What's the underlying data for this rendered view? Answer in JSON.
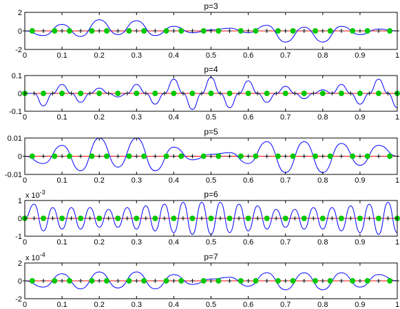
{
  "colors": {
    "curve": "#0000ff",
    "zero_line": "#ff0000",
    "points": "#00c800",
    "markers": "#000000",
    "axes": "#000000"
  },
  "chart_data": [
    {
      "type": "line",
      "title": "p=3",
      "xlim": [
        0,
        1
      ],
      "ylim": [
        -2,
        2
      ],
      "x_ticks": [
        "0",
        "0.1",
        "0.2",
        "0.3",
        "0.4",
        "0.5",
        "0.6",
        "0.7",
        "0.8",
        "0.9",
        "1"
      ],
      "y_ticks": [
        "2",
        "0",
        "-2"
      ],
      "y_tick_values": [
        2,
        0,
        -2
      ],
      "exponent_label": "",
      "series": [
        {
          "values_x": [
            0,
            0.05,
            0.1,
            0.15,
            0.2,
            0.25,
            0.3,
            0.35,
            0.4,
            0.45,
            0.5,
            0.55,
            0.6,
            0.65,
            0.7,
            0.75,
            0.8,
            0.85,
            0.9,
            0.95,
            1
          ],
          "values_y": [
            0,
            -0.5,
            0.7,
            -0.6,
            1.2,
            -0.4,
            1.1,
            -0.5,
            0.5,
            -0.2,
            0.1,
            0.3,
            -0.2,
            0.6,
            -1.2,
            0.4,
            -1.2,
            0.5,
            -0.4,
            0.2,
            0
          ]
        }
      ],
      "points_x": [
        0.02,
        0.08,
        0.12,
        0.18,
        0.22,
        0.28,
        0.32,
        0.38,
        0.42,
        0.48,
        0.52,
        0.58,
        0.62,
        0.68,
        0.72,
        0.78,
        0.82,
        0.88,
        0.92,
        0.98
      ],
      "markers_x": [
        0,
        0.05,
        0.1,
        0.15,
        0.2,
        0.25,
        0.3,
        0.35,
        0.4,
        0.45,
        0.5,
        0.55,
        0.6,
        0.65,
        0.7,
        0.75,
        0.8,
        0.85,
        0.9,
        0.95,
        1
      ]
    },
    {
      "type": "line",
      "title": "p=4",
      "xlim": [
        0,
        1
      ],
      "ylim": [
        -0.1,
        0.1
      ],
      "x_ticks": [
        "0",
        "0.1",
        "0.2",
        "0.3",
        "0.4",
        "0.5",
        "0.6",
        "0.7",
        "0.8",
        "0.9",
        "1"
      ],
      "y_ticks": [
        "0.1",
        "0",
        "-0.1"
      ],
      "y_tick_values": [
        0.1,
        0,
        -0.1
      ],
      "exponent_label": "",
      "series": [
        {
          "values_x": [
            0,
            0.025,
            0.05,
            0.075,
            0.1,
            0.125,
            0.15,
            0.175,
            0.2,
            0.225,
            0.25,
            0.275,
            0.3,
            0.325,
            0.35,
            0.375,
            0.4,
            0.425,
            0.45,
            0.475,
            0.5,
            0.525,
            0.55,
            0.575,
            0.6,
            0.625,
            0.65,
            0.675,
            0.7,
            0.725,
            0.75,
            0.775,
            0.8,
            0.825,
            0.85,
            0.875,
            0.9,
            0.925,
            0.95,
            0.975,
            1
          ],
          "values_y": [
            0,
            0,
            -0.07,
            0,
            0.05,
            0,
            -0.05,
            0,
            0.03,
            0,
            -0.02,
            0,
            0.05,
            0,
            -0.06,
            0,
            0.08,
            0,
            -0.09,
            0,
            0.09,
            0,
            -0.08,
            0,
            0.07,
            0,
            -0.05,
            0,
            0.04,
            0,
            -0.03,
            0,
            0.02,
            0,
            0.05,
            0,
            -0.06,
            0,
            0.08,
            0,
            -0.08
          ]
        }
      ],
      "points_x": [
        0,
        0.05,
        0.1,
        0.15,
        0.2,
        0.25,
        0.3,
        0.35,
        0.4,
        0.45,
        0.5,
        0.55,
        0.6,
        0.65,
        0.7,
        0.75,
        0.8,
        0.85,
        0.9,
        0.95,
        1
      ],
      "markers_x": [
        0.025,
        0.075,
        0.125,
        0.175,
        0.225,
        0.275,
        0.325,
        0.375,
        0.425,
        0.475,
        0.525,
        0.575,
        0.625,
        0.675,
        0.725,
        0.775,
        0.825,
        0.875,
        0.925,
        0.975
      ]
    },
    {
      "type": "line",
      "title": "p=5",
      "xlim": [
        0,
        1
      ],
      "ylim": [
        -0.01,
        0.01
      ],
      "x_ticks": [
        "0",
        "0.1",
        "0.2",
        "0.3",
        "0.4",
        "0.5",
        "0.6",
        "0.7",
        "0.8",
        "0.9",
        "1"
      ],
      "y_ticks": [
        "0.01",
        "0",
        "-0.01"
      ],
      "y_tick_values": [
        0.01,
        0,
        -0.01
      ],
      "exponent_label": "",
      "series": [
        {
          "values_x": [
            0,
            0.05,
            0.1,
            0.15,
            0.2,
            0.25,
            0.3,
            0.35,
            0.4,
            0.45,
            0.5,
            0.55,
            0.6,
            0.65,
            0.7,
            0.75,
            0.8,
            0.85,
            0.9,
            0.95,
            1
          ],
          "values_y": [
            0,
            -0.004,
            0.006,
            -0.008,
            0.01,
            -0.006,
            0.01,
            -0.008,
            0.005,
            -0.002,
            0.001,
            0.002,
            -0.004,
            0.008,
            -0.009,
            0.008,
            -0.009,
            0.007,
            -0.005,
            0.006,
            0
          ]
        }
      ],
      "points_x": [
        0.02,
        0.08,
        0.12,
        0.18,
        0.22,
        0.28,
        0.32,
        0.38,
        0.42,
        0.48,
        0.52,
        0.58,
        0.62,
        0.68,
        0.72,
        0.78,
        0.82,
        0.88,
        0.92,
        0.98
      ],
      "markers_x": [
        0,
        0.05,
        0.1,
        0.15,
        0.2,
        0.25,
        0.3,
        0.35,
        0.4,
        0.45,
        0.5,
        0.55,
        0.6,
        0.65,
        0.7,
        0.75,
        0.8,
        0.85,
        0.9,
        0.95,
        1
      ]
    },
    {
      "type": "line",
      "title": "p=6",
      "xlim": [
        0,
        1
      ],
      "ylim": [
        -1,
        1
      ],
      "x_ticks": [
        "0",
        "0.1",
        "0.2",
        "0.3",
        "0.4",
        "0.5",
        "0.6",
        "0.7",
        "0.8",
        "0.9",
        "1"
      ],
      "y_ticks": [
        "1",
        "0",
        "-1"
      ],
      "y_tick_values": [
        1,
        0,
        -1
      ],
      "exponent_label": "x 10^-3",
      "series": [
        {
          "values_x": [
            0,
            0.025,
            0.05,
            0.075,
            0.1,
            0.125,
            0.15,
            0.175,
            0.2,
            0.225,
            0.25,
            0.275,
            0.3,
            0.325,
            0.35,
            0.375,
            0.4,
            0.425,
            0.45,
            0.475,
            0.5,
            0.525,
            0.55,
            0.575,
            0.6,
            0.625,
            0.65,
            0.675,
            0.7,
            0.725,
            0.75,
            0.775,
            0.8,
            0.825,
            0.85,
            0.875,
            0.9,
            0.925,
            0.95,
            0.975,
            1
          ],
          "values_y": [
            0,
            0.8,
            -0.7,
            0.6,
            -0.6,
            0.6,
            -0.6,
            0.6,
            -0.5,
            0.5,
            -0.5,
            0.6,
            -0.6,
            0.7,
            -0.7,
            0.8,
            -0.8,
            0.9,
            -0.9,
            0.9,
            -0.9,
            0.9,
            -0.8,
            0.8,
            -0.7,
            0.7,
            -0.6,
            0.5,
            -0.5,
            0.5,
            -0.6,
            0.6,
            -0.6,
            0.6,
            -0.7,
            0.7,
            -0.8,
            0.8,
            -0.9,
            0.9,
            -0.8
          ]
        }
      ],
      "points_x": [
        0,
        0.05,
        0.1,
        0.15,
        0.2,
        0.25,
        0.3,
        0.35,
        0.4,
        0.45,
        0.5,
        0.55,
        0.6,
        0.65,
        0.7,
        0.75,
        0.8,
        0.85,
        0.9,
        0.95,
        1
      ],
      "markers_x": [
        0.025,
        0.075,
        0.125,
        0.175,
        0.225,
        0.275,
        0.325,
        0.375,
        0.425,
        0.475,
        0.525,
        0.575,
        0.625,
        0.675,
        0.725,
        0.775,
        0.825,
        0.875,
        0.925,
        0.975
      ]
    },
    {
      "type": "line",
      "title": "p=7",
      "xlim": [
        0,
        1
      ],
      "ylim": [
        -2,
        2
      ],
      "x_ticks": [
        "0",
        "0.1",
        "0.2",
        "0.3",
        "0.4",
        "0.5",
        "0.6",
        "0.7",
        "0.8",
        "0.9",
        "1"
      ],
      "y_ticks": [
        "2",
        "0",
        "-2"
      ],
      "y_tick_values": [
        2,
        0,
        -2
      ],
      "exponent_label": "x 10^-4",
      "series": [
        {
          "values_x": [
            0,
            0.05,
            0.1,
            0.15,
            0.2,
            0.25,
            0.3,
            0.35,
            0.4,
            0.45,
            0.5,
            0.55,
            0.6,
            0.65,
            0.7,
            0.75,
            0.8,
            0.85,
            0.9,
            0.95,
            1
          ],
          "values_y": [
            0,
            -0.7,
            0.8,
            -0.9,
            1.0,
            -0.8,
            1.0,
            -0.9,
            0.7,
            -0.4,
            0.2,
            0.4,
            -0.6,
            0.9,
            -1.0,
            0.9,
            -1.0,
            0.9,
            -0.7,
            0.7,
            0
          ]
        }
      ],
      "points_x": [
        0.02,
        0.08,
        0.12,
        0.18,
        0.22,
        0.28,
        0.32,
        0.38,
        0.42,
        0.48,
        0.52,
        0.58,
        0.62,
        0.68,
        0.72,
        0.78,
        0.82,
        0.88,
        0.92,
        0.98
      ],
      "markers_x": [
        0,
        0.05,
        0.1,
        0.15,
        0.2,
        0.25,
        0.3,
        0.35,
        0.4,
        0.45,
        0.5,
        0.55,
        0.6,
        0.65,
        0.7,
        0.75,
        0.8,
        0.85,
        0.9,
        0.95,
        1
      ]
    }
  ]
}
